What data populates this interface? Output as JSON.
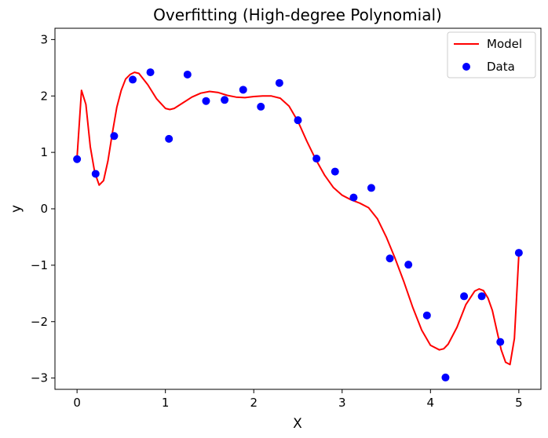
{
  "chart_data": {
    "type": "scatter",
    "title": "Overfitting (High-degree Polynomial)",
    "xlabel": "X",
    "ylabel": "y",
    "xlim": [
      -0.25,
      5.25
    ],
    "ylim": [
      -3.2,
      3.2
    ],
    "xticks": [
      0,
      1,
      2,
      3,
      4,
      5
    ],
    "xtick_labels": [
      "0",
      "1",
      "2",
      "3",
      "4",
      "5"
    ],
    "yticks": [
      -3,
      -2,
      -1,
      0,
      1,
      2,
      3
    ],
    "ytick_labels": [
      "−3",
      "−2",
      "−1",
      "0",
      "1",
      "2",
      "3"
    ],
    "grid": false,
    "legend_position": "top-right",
    "series": [
      {
        "name": "Model",
        "kind": "line",
        "color": "#ff0000",
        "x": [
          0.0,
          0.05,
          0.1,
          0.15,
          0.2,
          0.25,
          0.3,
          0.35,
          0.4,
          0.45,
          0.5,
          0.55,
          0.6,
          0.65,
          0.7,
          0.8,
          0.9,
          1.0,
          1.05,
          1.1,
          1.2,
          1.3,
          1.4,
          1.5,
          1.6,
          1.7,
          1.8,
          1.9,
          2.0,
          2.1,
          2.2,
          2.3,
          2.4,
          2.5,
          2.6,
          2.7,
          2.8,
          2.9,
          3.0,
          3.1,
          3.2,
          3.3,
          3.4,
          3.5,
          3.6,
          3.7,
          3.8,
          3.9,
          4.0,
          4.1,
          4.15,
          4.2,
          4.3,
          4.4,
          4.5,
          4.55,
          4.6,
          4.65,
          4.7,
          4.75,
          4.8,
          4.85,
          4.9,
          4.95,
          5.0
        ],
        "y": [
          0.9,
          2.1,
          1.85,
          1.1,
          0.65,
          0.42,
          0.5,
          0.85,
          1.35,
          1.8,
          2.1,
          2.3,
          2.38,
          2.42,
          2.4,
          2.2,
          1.95,
          1.78,
          1.76,
          1.78,
          1.88,
          1.98,
          2.05,
          2.08,
          2.06,
          2.01,
          1.98,
          1.97,
          1.99,
          2.0,
          2.0,
          1.96,
          1.82,
          1.55,
          1.2,
          0.88,
          0.6,
          0.38,
          0.24,
          0.16,
          0.1,
          0.02,
          -0.18,
          -0.5,
          -0.88,
          -1.3,
          -1.75,
          -2.15,
          -2.42,
          -2.5,
          -2.48,
          -2.4,
          -2.1,
          -1.7,
          -1.46,
          -1.42,
          -1.45,
          -1.58,
          -1.8,
          -2.15,
          -2.5,
          -2.72,
          -2.76,
          -2.3,
          -0.8
        ]
      },
      {
        "name": "Data",
        "kind": "scatter",
        "color": "#0000ff",
        "x": [
          0.0,
          0.21,
          0.42,
          0.63,
          0.83,
          1.04,
          1.25,
          1.46,
          1.67,
          1.88,
          2.08,
          2.29,
          2.5,
          2.71,
          2.92,
          3.13,
          3.33,
          3.54,
          3.75,
          3.96,
          4.17,
          4.38,
          4.58,
          4.79,
          5.0
        ],
        "y": [
          0.88,
          0.62,
          1.29,
          2.29,
          2.42,
          1.24,
          2.38,
          1.91,
          1.93,
          2.11,
          1.81,
          2.23,
          1.57,
          0.89,
          0.66,
          0.2,
          0.37,
          -0.88,
          -0.99,
          -1.89,
          -2.99,
          -1.55,
          -1.55,
          -2.36,
          -0.78
        ]
      }
    ]
  }
}
